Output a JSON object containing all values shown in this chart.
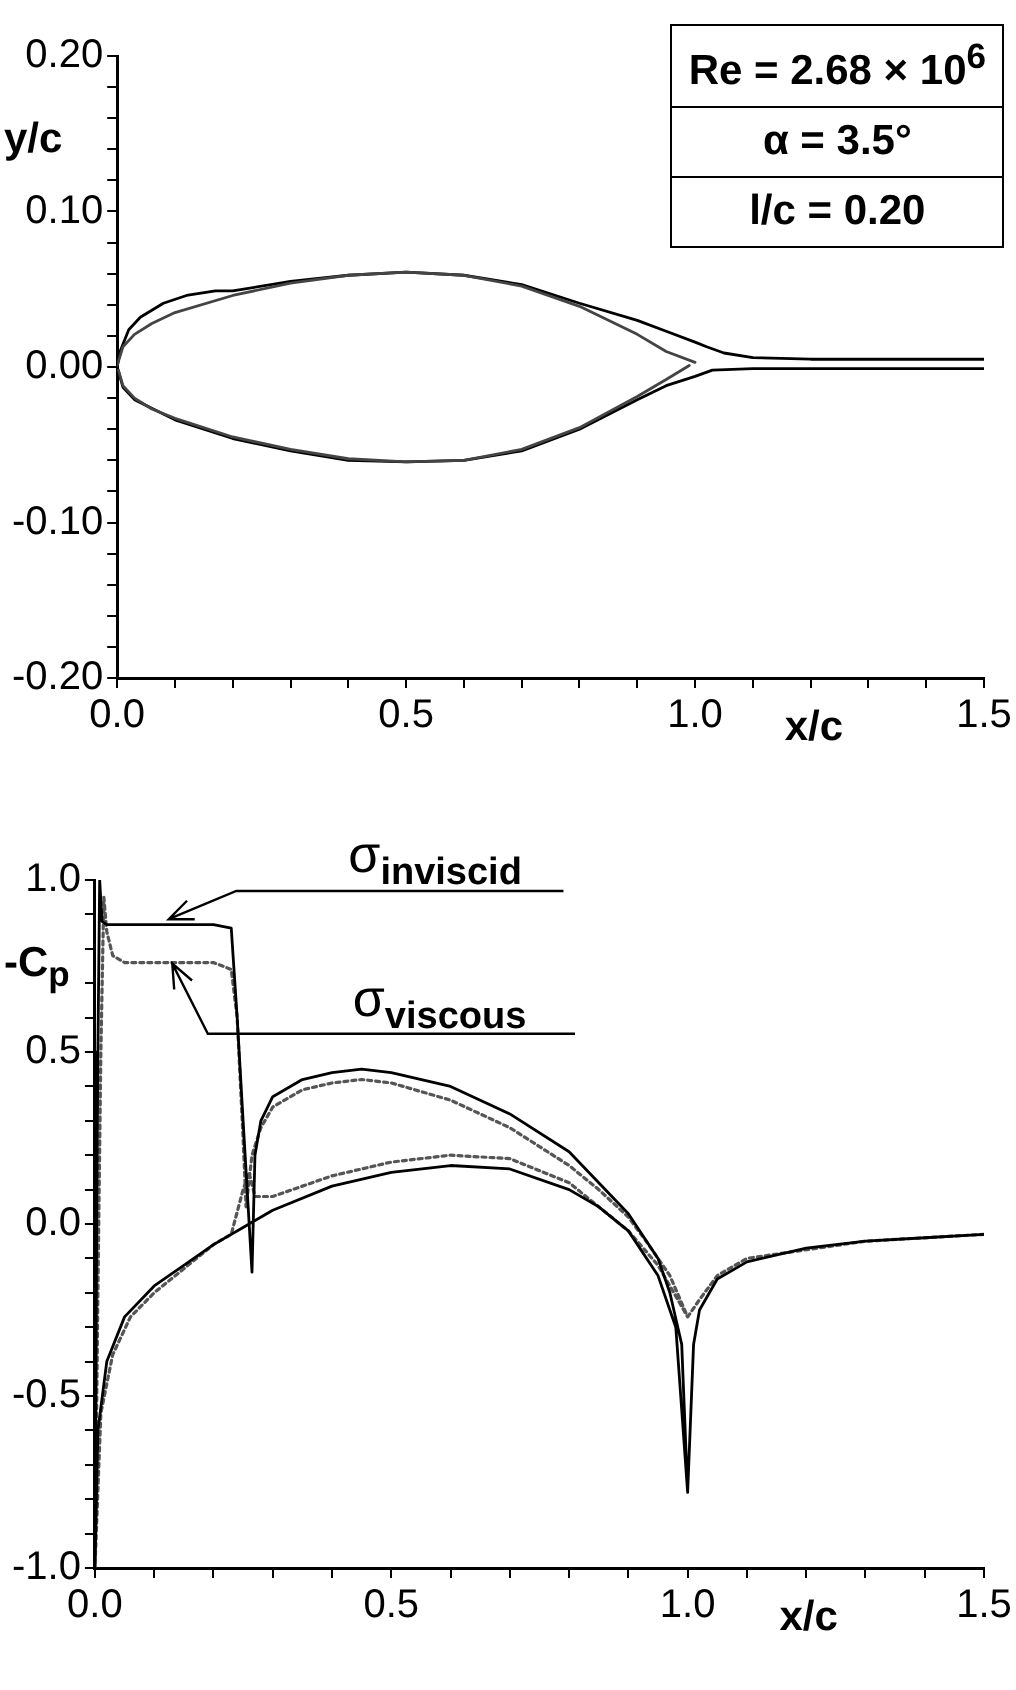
{
  "chart_data": [
    {
      "type": "line",
      "xlabel": "x/c",
      "ylabel": "y/c",
      "xlim": [
        0,
        1.5
      ],
      "ylim": [
        -0.2,
        0.2
      ],
      "xticks": [
        {
          "value": 0,
          "label": "0.0"
        },
        {
          "value": 0.1,
          "label": null
        },
        {
          "value": 0.2,
          "label": null
        },
        {
          "value": 0.3,
          "label": null
        },
        {
          "value": 0.4,
          "label": null
        },
        {
          "value": 0.5,
          "label": "0.5"
        },
        {
          "value": 0.6,
          "label": null
        },
        {
          "value": 0.7,
          "label": null
        },
        {
          "value": 0.8,
          "label": null
        },
        {
          "value": 0.9,
          "label": null
        },
        {
          "value": 1.0,
          "label": "1.0"
        },
        {
          "value": 1.1,
          "label": null
        },
        {
          "value": 1.2,
          "label": null
        },
        {
          "value": 1.3,
          "label": null
        },
        {
          "value": 1.4,
          "label": null
        },
        {
          "value": 1.5,
          "label": "1.5"
        }
      ],
      "yticks": [
        {
          "value": -0.2,
          "label": "-0.20"
        },
        {
          "value": -0.18,
          "label": null
        },
        {
          "value": -0.16,
          "label": null
        },
        {
          "value": -0.14,
          "label": null
        },
        {
          "value": -0.12,
          "label": null
        },
        {
          "value": -0.1,
          "label": "-0.10"
        },
        {
          "value": -0.08,
          "label": null
        },
        {
          "value": -0.06,
          "label": null
        },
        {
          "value": -0.04,
          "label": null
        },
        {
          "value": -0.02,
          "label": null
        },
        {
          "value": 0,
          "label": "0.00"
        },
        {
          "value": 0.02,
          "label": null
        },
        {
          "value": 0.04,
          "label": null
        },
        {
          "value": 0.06,
          "label": null
        },
        {
          "value": 0.08,
          "label": null
        },
        {
          "value": 0.1,
          "label": "0.10"
        },
        {
          "value": 0.12,
          "label": null
        },
        {
          "value": 0.14,
          "label": null
        },
        {
          "value": 0.16,
          "label": null
        },
        {
          "value": 0.18,
          "label": null
        },
        {
          "value": 0.2,
          "label": "0.20"
        }
      ],
      "annotations": [
        "Re = 2.68 × 10$^{6}$",
        "α = 3.5°",
        "l/c = 0.20"
      ],
      "series": [
        {
          "color": "#444444",
          "line_style": "solid",
          "x": [
            0,
            0.01,
            0.03,
            0.06,
            0.1,
            0.2,
            0.3,
            0.4,
            0.5,
            0.6,
            0.7,
            0.8,
            0.9,
            0.95,
            1.0
          ],
          "values": [
            0.001,
            0.013,
            0.021,
            0.028,
            0.035,
            0.046,
            0.054,
            0.059,
            0.061,
            0.059,
            0.052,
            0.039,
            0.021,
            0.01,
            0.003
          ]
        },
        {
          "color": "#444444",
          "line_style": "solid",
          "x": [
            0.002,
            0.01,
            0.03,
            0.06,
            0.1,
            0.2,
            0.3,
            0.4,
            0.5,
            0.6,
            0.7,
            0.8,
            0.9,
            0.95,
            0.99
          ],
          "values": [
            -0.002,
            -0.012,
            -0.02,
            -0.027,
            -0.033,
            -0.045,
            -0.053,
            -0.059,
            -0.061,
            -0.06,
            -0.053,
            -0.039,
            -0.019,
            -0.008,
            0.001
          ]
        },
        {
          "color": "#000000",
          "line_style": "solid",
          "x": [
            0,
            0.005,
            0.02,
            0.04,
            0.08,
            0.12,
            0.17,
            0.2,
            0.3,
            0.4,
            0.5,
            0.6,
            0.7,
            0.8,
            0.9,
            0.95,
            1.0,
            1.02,
            1.05,
            1.1,
            1.2,
            1.5
          ],
          "values": [
            0,
            0.01,
            0.024,
            0.032,
            0.041,
            0.046,
            0.049,
            0.049,
            0.055,
            0.059,
            0.061,
            0.059,
            0.053,
            0.041,
            0.03,
            0.023,
            0.016,
            0.013,
            0.009,
            0.006,
            0.005,
            0.005
          ]
        },
        {
          "color": "#000000",
          "line_style": "solid",
          "x": [
            0,
            0.01,
            0.03,
            0.1,
            0.2,
            0.3,
            0.4,
            0.5,
            0.6,
            0.7,
            0.8,
            0.9,
            0.95,
            1.0,
            1.03,
            1.1,
            1.5
          ],
          "values": [
            0,
            -0.013,
            -0.021,
            -0.034,
            -0.046,
            -0.054,
            -0.06,
            -0.061,
            -0.06,
            -0.054,
            -0.04,
            -0.021,
            -0.012,
            -0.006,
            -0.002,
            -0.001,
            -0.001
          ]
        }
      ]
    },
    {
      "type": "line",
      "xlabel": "x/c",
      "ylabel": "-C$_{p}$",
      "xlim": [
        0,
        1.5
      ],
      "ylim": [
        -1,
        1
      ],
      "xticks": [
        {
          "value": 0,
          "label": "0.0"
        },
        {
          "value": 0.1,
          "label": null
        },
        {
          "value": 0.2,
          "label": null
        },
        {
          "value": 0.3,
          "label": null
        },
        {
          "value": 0.4,
          "label": null
        },
        {
          "value": 0.5,
          "label": "0.5"
        },
        {
          "value": 0.6,
          "label": null
        },
        {
          "value": 0.7,
          "label": null
        },
        {
          "value": 0.8,
          "label": null
        },
        {
          "value": 0.9,
          "label": null
        },
        {
          "value": 1.0,
          "label": "1.0"
        },
        {
          "value": 1.1,
          "label": null
        },
        {
          "value": 1.2,
          "label": null
        },
        {
          "value": 1.3,
          "label": null
        },
        {
          "value": 1.4,
          "label": null
        },
        {
          "value": 1.5,
          "label": "1.5"
        }
      ],
      "yticks": [
        {
          "value": -1,
          "label": "-1.0"
        },
        {
          "value": -0.9,
          "label": null
        },
        {
          "value": -0.8,
          "label": null
        },
        {
          "value": -0.7,
          "label": null
        },
        {
          "value": -0.6,
          "label": null
        },
        {
          "value": -0.5,
          "label": "-0.5"
        },
        {
          "value": -0.4,
          "label": null
        },
        {
          "value": -0.3,
          "label": null
        },
        {
          "value": -0.2,
          "label": null
        },
        {
          "value": -0.1,
          "label": null
        },
        {
          "value": 0,
          "label": "0.0"
        },
        {
          "value": 0.1,
          "label": null
        },
        {
          "value": 0.2,
          "label": null
        },
        {
          "value": 0.3,
          "label": null
        },
        {
          "value": 0.4,
          "label": null
        },
        {
          "value": 0.5,
          "label": "0.5"
        },
        {
          "value": 0.6,
          "label": null
        },
        {
          "value": 0.7,
          "label": null
        },
        {
          "value": 0.8,
          "label": null
        },
        {
          "value": 0.9,
          "label": null
        },
        {
          "value": 1,
          "label": "1.0"
        }
      ],
      "series": [
        {
          "name": "σ$_{inviscid}$",
          "color": "#000000",
          "line_style": "solid",
          "x": [
            1.5,
            1.4,
            1.3,
            1.2,
            1.1,
            1.05,
            1.02,
            1.01,
            1.0,
            0.99,
            0.97,
            0.95,
            0.9,
            0.8,
            0.7,
            0.6,
            0.5,
            0.45,
            0.4,
            0.35,
            0.3,
            0.28,
            0.27,
            0.265,
            0.25,
            0.24,
            0.23,
            0.2,
            0.1,
            0.02,
            0.012,
            0.008,
            0.005,
            0.003,
            0,
            0.005,
            0.02,
            0.05,
            0.1,
            0.15,
            0.2,
            0.25,
            0.3,
            0.4,
            0.5,
            0.6,
            0.7,
            0.8,
            0.85,
            0.9,
            0.95,
            0.98,
            1.0
          ],
          "values": [
            -0.03,
            -0.04,
            -0.05,
            -0.07,
            -0.11,
            -0.16,
            -0.25,
            -0.35,
            -0.78,
            -0.35,
            -0.2,
            -0.1,
            0.03,
            0.21,
            0.32,
            0.4,
            0.44,
            0.45,
            0.44,
            0.42,
            0.37,
            0.3,
            0.2,
            -0.14,
            0.3,
            0.6,
            0.86,
            0.87,
            0.87,
            0.87,
            0.88,
            1.0,
            0.5,
            0,
            -1.0,
            -0.6,
            -0.4,
            -0.27,
            -0.18,
            -0.12,
            -0.06,
            -0.01,
            0.04,
            0.11,
            0.15,
            0.17,
            0.16,
            0.1,
            0.05,
            -0.02,
            -0.15,
            -0.3,
            -0.78
          ]
        },
        {
          "name": "σ$_{viscous}$",
          "color": "#555555",
          "line_style": "dotted",
          "x": [
            1.5,
            1.3,
            1.1,
            1.05,
            1.02,
            1.0,
            0.97,
            0.93,
            0.9,
            0.85,
            0.8,
            0.7,
            0.6,
            0.5,
            0.45,
            0.4,
            0.35,
            0.3,
            0.28,
            0.265,
            0.255,
            0.25,
            0.24,
            0.23,
            0.2,
            0.1,
            0.05,
            0.03,
            0.02,
            0.015,
            0.01,
            0.005,
            0,
            0.01,
            0.03,
            0.06,
            0.1,
            0.15,
            0.2,
            0.23,
            0.25,
            0.26,
            0.27,
            0.3,
            0.4,
            0.5,
            0.6,
            0.7,
            0.8,
            0.9,
            0.95,
            1.0
          ],
          "values": [
            -0.03,
            -0.05,
            -0.1,
            -0.15,
            -0.22,
            -0.27,
            -0.15,
            -0.05,
            0.02,
            0.1,
            0.17,
            0.28,
            0.36,
            0.41,
            0.42,
            0.41,
            0.39,
            0.34,
            0.28,
            0.2,
            0.05,
            0.25,
            0.6,
            0.74,
            0.76,
            0.76,
            0.76,
            0.78,
            0.85,
            0.95,
            0.5,
            -0.2,
            -1.0,
            -0.55,
            -0.38,
            -0.27,
            -0.2,
            -0.13,
            -0.06,
            -0.03,
            0.1,
            0.15,
            0.08,
            0.08,
            0.14,
            0.18,
            0.2,
            0.19,
            0.12,
            -0.02,
            -0.12,
            -0.27
          ]
        }
      ]
    }
  ]
}
